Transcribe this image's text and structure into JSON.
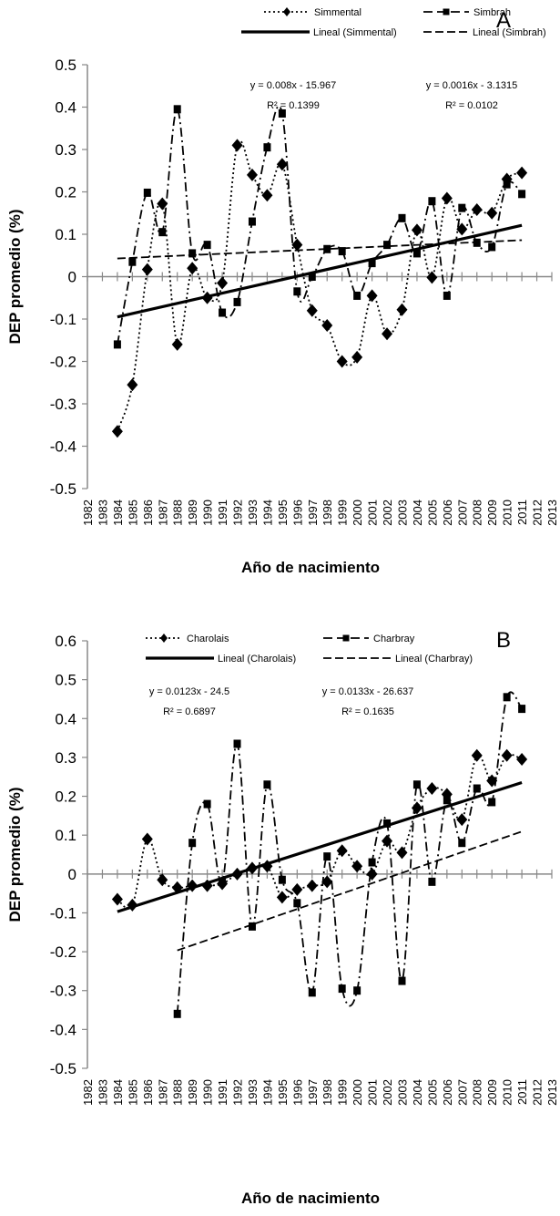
{
  "chart_data": [
    {
      "type": "line",
      "panel_label": "A",
      "xlabel": "Año de nacimiento",
      "ylabel": "DEP promedio (%)",
      "xlim": [
        1982,
        2013
      ],
      "ylim": [
        -0.5,
        0.5
      ],
      "ytick_step": 0.1,
      "x_ticks": [
        "1982",
        "1983",
        "1984",
        "1985",
        "1986",
        "1987",
        "1988",
        "1989",
        "1990",
        "1991",
        "1992",
        "1993",
        "1994",
        "1995",
        "1996",
        "1997",
        "1998",
        "1999",
        "2000",
        "2001",
        "2002",
        "2003",
        "2004",
        "2005",
        "2006",
        "2007",
        "2008",
        "2009",
        "2010",
        "2011",
        "2012",
        "2013"
      ],
      "y_ticks": [
        "0.5",
        "0.4",
        "0.3",
        "0.2",
        "0.1",
        "0",
        "-0.1",
        "-0.2",
        "-0.3",
        "-0.4",
        "-0.5"
      ],
      "legend": [
        "Simmental",
        "Simbrah",
        "Lineal (Simmental)",
        "Lineal (Simbrah)"
      ],
      "series": [
        {
          "name": "Simmental",
          "marker": "diamond",
          "dash": "dotted",
          "x": [
            1984,
            1985,
            1986,
            1987,
            1988,
            1989,
            1990,
            1991,
            1992,
            1993,
            1994,
            1995,
            1996,
            1997,
            1998,
            1999,
            2000,
            2001,
            2002,
            2003,
            2004,
            2005,
            2006,
            2007,
            2008,
            2009,
            2010,
            2011
          ],
          "values": [
            -0.365,
            -0.255,
            0.017,
            0.172,
            -0.16,
            0.02,
            -0.05,
            -0.015,
            0.31,
            0.24,
            0.192,
            0.265,
            0.075,
            -0.08,
            -0.115,
            -0.2,
            -0.19,
            -0.045,
            -0.135,
            -0.078,
            0.11,
            -0.002,
            0.185,
            0.112,
            0.158,
            0.15,
            0.23,
            0.245
          ]
        },
        {
          "name": "Simbrah",
          "marker": "square",
          "dash": "dashed",
          "x": [
            1984,
            1985,
            1986,
            1987,
            1988,
            1989,
            1990,
            1991,
            1992,
            1993,
            1994,
            1995,
            1996,
            1997,
            1998,
            1999,
            2000,
            2001,
            2002,
            2003,
            2004,
            2005,
            2006,
            2007,
            2008,
            2009,
            2010,
            2011
          ],
          "values": [
            -0.16,
            0.035,
            0.198,
            0.105,
            0.395,
            0.055,
            0.075,
            -0.085,
            -0.06,
            0.13,
            0.305,
            0.385,
            -0.035,
            0.0,
            0.065,
            0.06,
            -0.045,
            0.032,
            0.075,
            0.138,
            0.055,
            0.178,
            -0.045,
            0.162,
            0.08,
            0.07,
            0.218,
            0.195
          ]
        }
      ],
      "trendlines": [
        {
          "name": "Lineal (Simmental)",
          "style": "solid",
          "slope": 0.008,
          "intercept": -15.967,
          "x_range": [
            1984,
            2011
          ],
          "equation": "y = 0.008x - 15.967",
          "r2": "R² = 0.1399"
        },
        {
          "name": "Lineal (Simbrah)",
          "style": "dashed",
          "slope": 0.0016,
          "intercept": -3.1315,
          "x_range": [
            1984,
            2011
          ],
          "equation": "y = 0.0016x - 3.1315",
          "r2": "R² = 0.0102"
        }
      ]
    },
    {
      "type": "line",
      "panel_label": "B",
      "xlabel": "Año de nacimiento",
      "ylabel": "DEP promedio (%)",
      "xlim": [
        1982,
        2013
      ],
      "ylim": [
        -0.5,
        0.6
      ],
      "ytick_step": 0.1,
      "x_ticks": [
        "1982",
        "1983",
        "1984",
        "1985",
        "1986",
        "1987",
        "1988",
        "1989",
        "1990",
        "1991",
        "1992",
        "1993",
        "1994",
        "1995",
        "1996",
        "1997",
        "1998",
        "1999",
        "2000",
        "2001",
        "2002",
        "2003",
        "2004",
        "2005",
        "2006",
        "2007",
        "2008",
        "2009",
        "2010",
        "2011",
        "2012",
        "2013"
      ],
      "y_ticks": [
        "0.6",
        "0.5",
        "0.4",
        "0.3",
        "0.2",
        "0.1",
        "0",
        "-0.1",
        "-0.2",
        "-0.3",
        "-0.4",
        "-0.5"
      ],
      "legend": [
        "Charolais",
        "Charbray",
        "Lineal (Charolais)",
        "Lineal (Charbray)"
      ],
      "series": [
        {
          "name": "Charolais",
          "marker": "diamond",
          "dash": "dotted",
          "x": [
            1984,
            1985,
            1986,
            1987,
            1988,
            1989,
            1990,
            1991,
            1992,
            1993,
            1994,
            1995,
            1996,
            1997,
            1998,
            1999,
            2000,
            2001,
            2002,
            2003,
            2004,
            2005,
            2006,
            2007,
            2008,
            2009,
            2010,
            2011
          ],
          "values": [
            -0.065,
            -0.08,
            0.09,
            -0.015,
            -0.035,
            -0.03,
            -0.03,
            -0.025,
            0.0,
            0.015,
            0.02,
            -0.06,
            -0.04,
            -0.03,
            -0.02,
            0.06,
            0.02,
            0.0,
            0.085,
            0.055,
            0.17,
            0.22,
            0.205,
            0.14,
            0.305,
            0.24,
            0.305,
            0.295
          ]
        },
        {
          "name": "Charbray",
          "marker": "square",
          "dash": "dashed",
          "x": [
            1988,
            1989,
            1990,
            1991,
            1992,
            1993,
            1994,
            1995,
            1996,
            1997,
            1998,
            1999,
            2000,
            2001,
            2002,
            2003,
            2004,
            2005,
            2006,
            2007,
            2008,
            2009,
            2010,
            2011
          ],
          "values": [
            -0.36,
            0.08,
            0.18,
            -0.02,
            0.335,
            -0.135,
            0.23,
            -0.015,
            -0.075,
            -0.305,
            0.045,
            -0.295,
            -0.3,
            0.03,
            0.13,
            -0.275,
            0.23,
            -0.02,
            0.19,
            0.08,
            0.22,
            0.185,
            0.455,
            0.425
          ]
        }
      ],
      "trendlines": [
        {
          "name": "Lineal (Charolais)",
          "style": "solid",
          "slope": 0.0123,
          "intercept": -24.5,
          "x_range": [
            1984,
            2011
          ],
          "equation": "y = 0.0123x - 24.5",
          "r2": "R² = 0.6897"
        },
        {
          "name": "Lineal (Charbray)",
          "style": "dashed",
          "slope": 0.0133,
          "intercept": -26.637,
          "x_range": [
            1988,
            2011
          ],
          "equation": "y = 0.0133x - 26.637",
          "r2": "R² = 0.1635"
        }
      ]
    }
  ]
}
